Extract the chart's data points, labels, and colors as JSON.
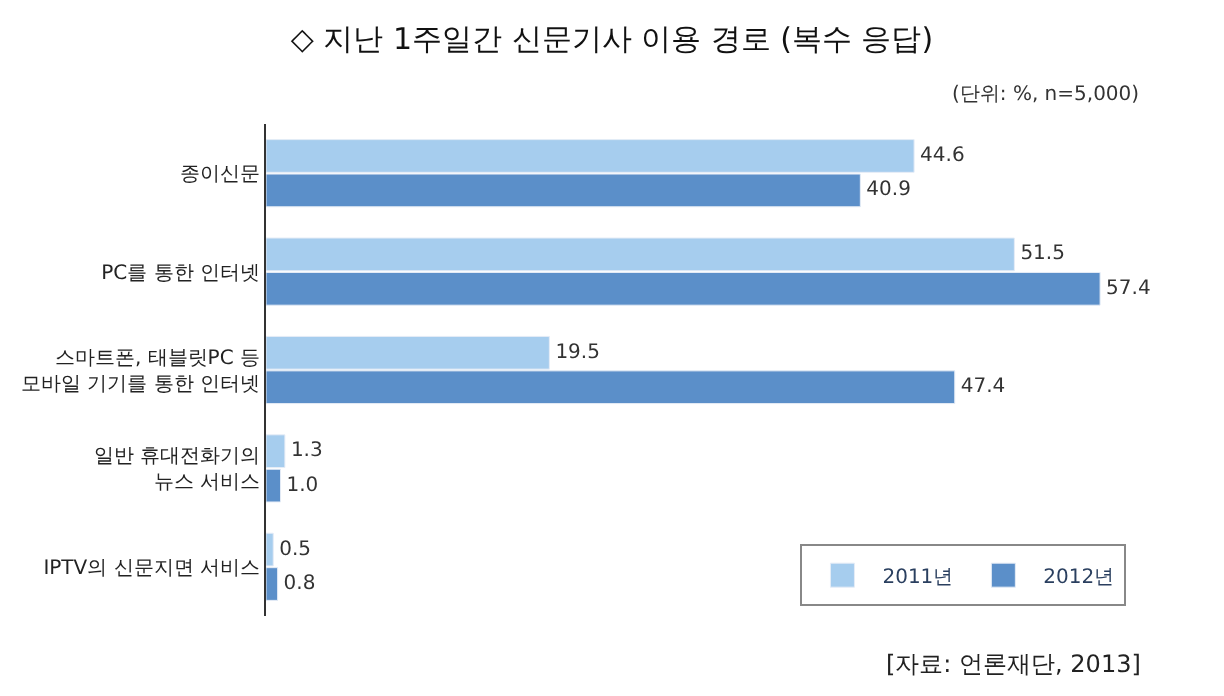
{
  "chart_data": {
    "type": "bar",
    "orientation": "horizontal",
    "title": "◇ 지난 1주일간 신문기사 이용 경로 (복수 응답)",
    "subtitle": "(단위: %, n=5,000)",
    "categories": [
      "종이신문",
      "PC를 통한 인터넷",
      "스마트폰, 태블릿PC 등\n모바일 기기를 통한 인터넷",
      "일반 휴대전화기의\n뉴스 서비스",
      "IPTV의 신문지면 서비스"
    ],
    "series": [
      {
        "name": "2011년",
        "color": "#a6cdee",
        "values": [
          44.6,
          51.5,
          19.5,
          1.3,
          0.5
        ],
        "value_labels": [
          "44.6",
          "51.5",
          "19.5",
          "1.3",
          "0.5"
        ]
      },
      {
        "name": "2012년",
        "color": "#5b8fc9",
        "values": [
          40.9,
          57.4,
          47.4,
          1.0,
          0.8
        ],
        "value_labels": [
          "40.9",
          "57.4",
          "47.4",
          "1.0",
          "0.8"
        ]
      }
    ],
    "legend": "bottom right",
    "tick_labels": "y",
    "annotations": [
      "[자료: 언론재단, 2013]"
    ]
  }
}
